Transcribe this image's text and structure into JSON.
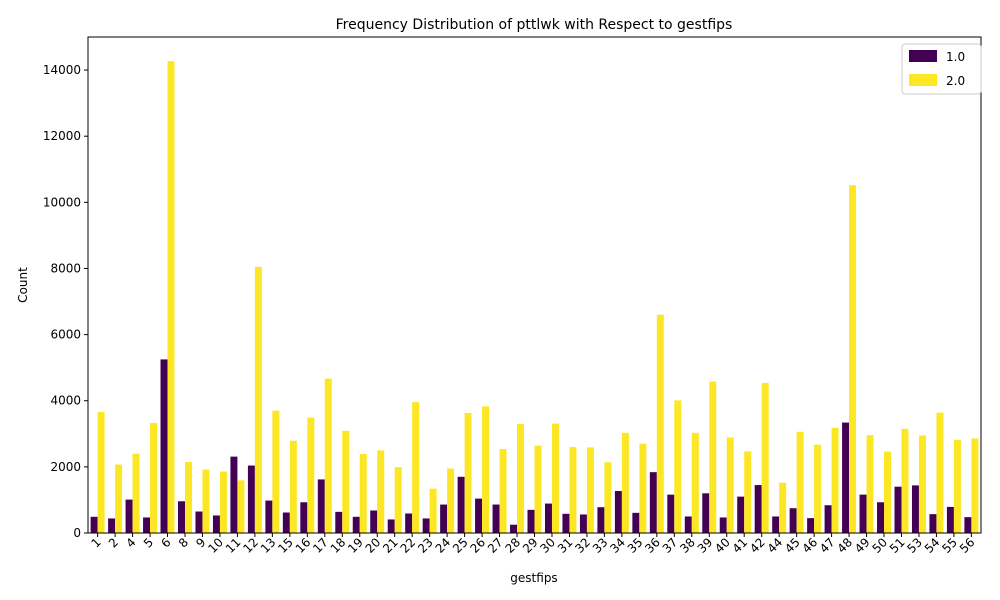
{
  "chart_data": {
    "type": "bar",
    "title": "Frequency Distribution of pttlwk with Respect to gestfips",
    "xlabel": "gestfips",
    "ylabel": "Count",
    "ylim": [
      0,
      15000
    ],
    "yticks": [
      0,
      2000,
      4000,
      6000,
      8000,
      10000,
      12000,
      14000
    ],
    "grid": false,
    "legend_position": "top-right",
    "categories": [
      "1",
      "2",
      "4",
      "5",
      "6",
      "8",
      "9",
      "10",
      "11",
      "12",
      "13",
      "15",
      "16",
      "17",
      "18",
      "19",
      "20",
      "21",
      "22",
      "23",
      "24",
      "25",
      "26",
      "27",
      "28",
      "29",
      "30",
      "31",
      "32",
      "33",
      "34",
      "35",
      "36",
      "37",
      "38",
      "39",
      "40",
      "41",
      "42",
      "44",
      "45",
      "46",
      "47",
      "48",
      "49",
      "50",
      "51",
      "53",
      "54",
      "55",
      "56"
    ],
    "series": [
      {
        "name": "1.0",
        "color": "#440154",
        "values": [
          490,
          440,
          1010,
          470,
          5250,
          960,
          650,
          530,
          2310,
          2040,
          980,
          620,
          930,
          1620,
          640,
          490,
          680,
          410,
          590,
          440,
          860,
          1700,
          1040,
          860,
          250,
          700,
          890,
          580,
          560,
          780,
          1270,
          610,
          1840,
          1160,
          500,
          1200,
          470,
          1100,
          1450,
          500,
          750,
          450,
          840,
          3340,
          1160,
          930,
          1400,
          1440,
          570,
          790,
          480
        ]
      },
      {
        "name": "2.0",
        "color": "#fde725",
        "values": [
          3660,
          2070,
          2400,
          3330,
          14270,
          2150,
          1920,
          1860,
          1590,
          8050,
          3700,
          2790,
          3490,
          4670,
          3090,
          2390,
          2500,
          1990,
          3960,
          1340,
          1950,
          3630,
          3830,
          2540,
          3300,
          2640,
          3310,
          2600,
          2590,
          2140,
          3030,
          2700,
          6600,
          4010,
          3030,
          4580,
          2890,
          2470,
          4540,
          1520,
          3060,
          2670,
          3180,
          10520,
          2960,
          2460,
          3150,
          2950,
          3640,
          2820,
          2860
        ]
      }
    ]
  }
}
